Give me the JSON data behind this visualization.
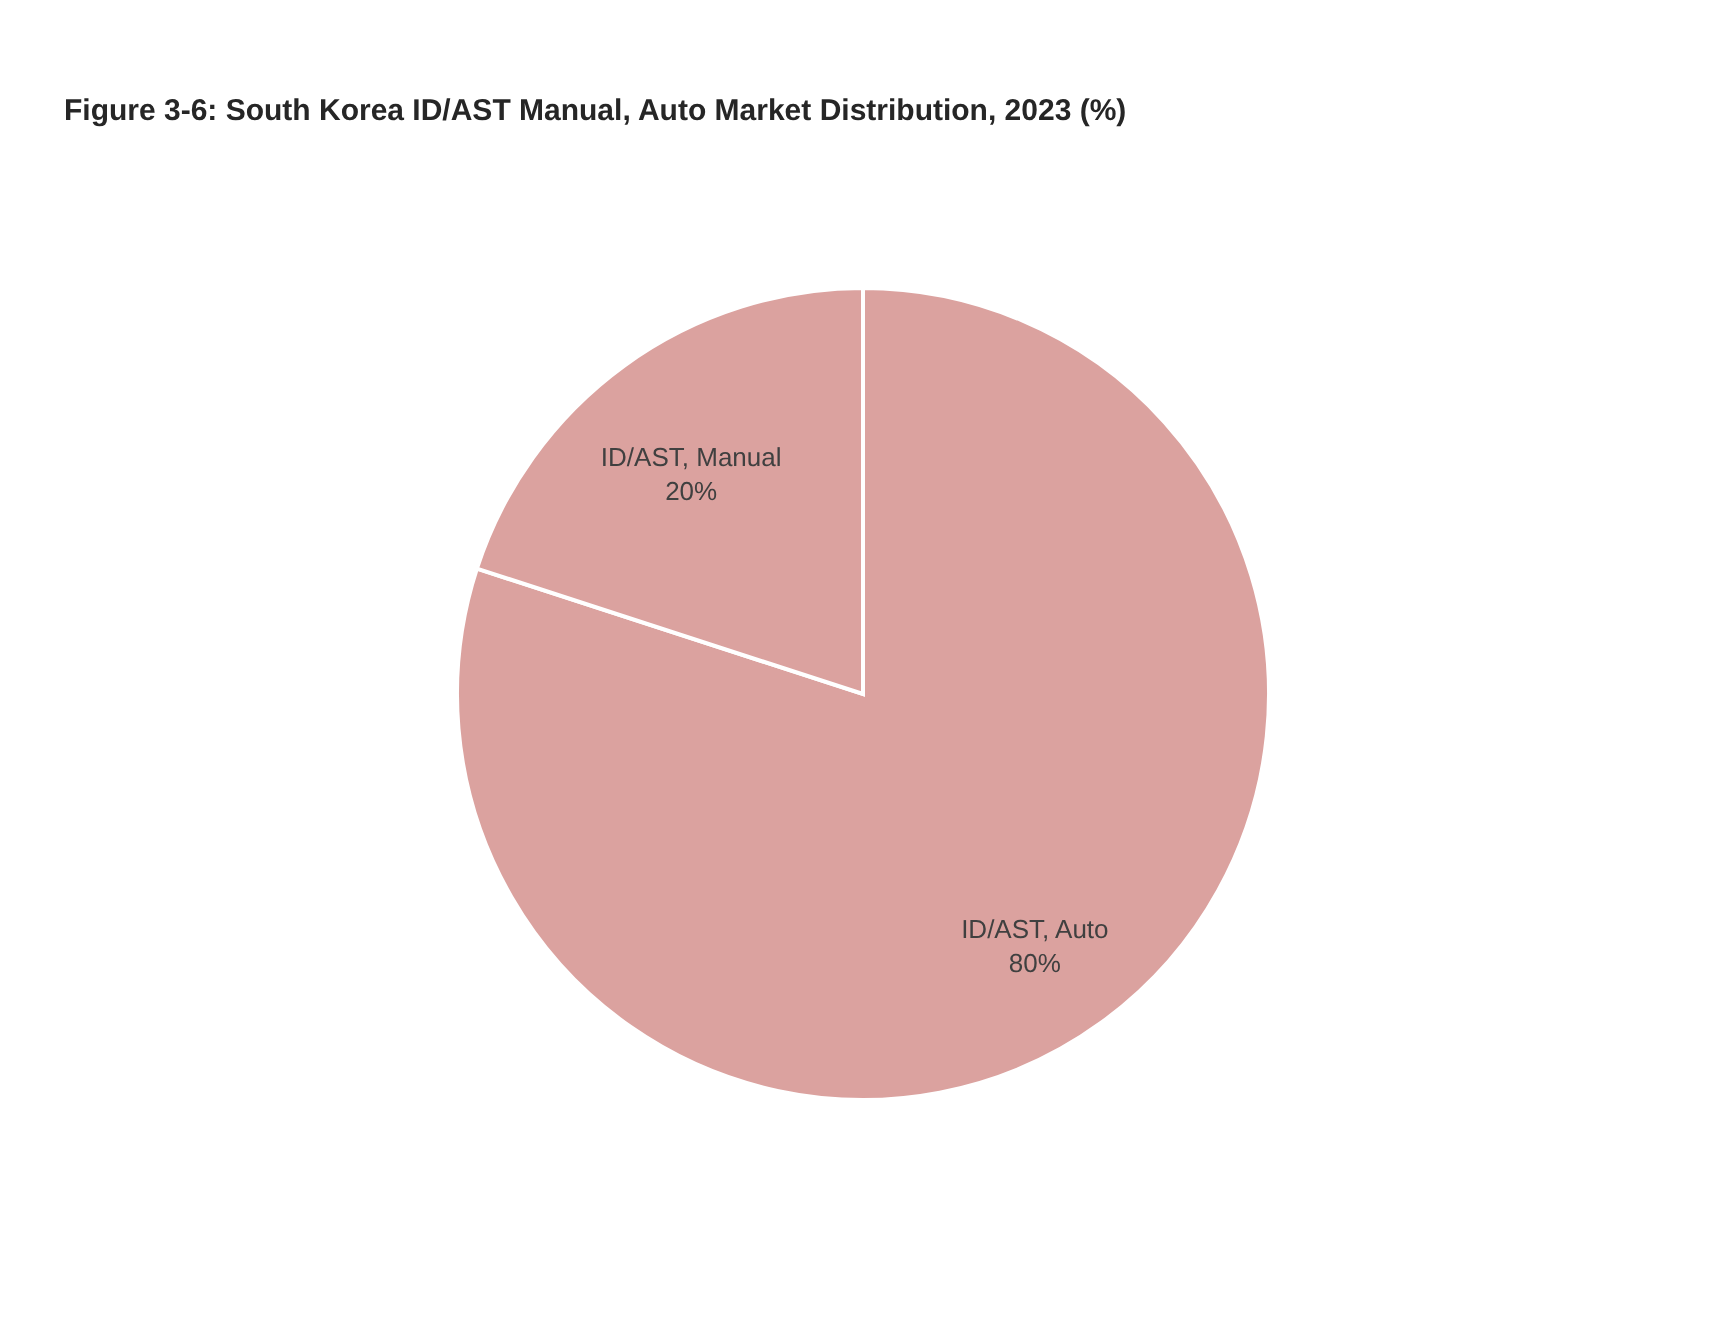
{
  "chart_data": {
    "type": "pie",
    "title": "Figure 3-6: South Korea ID/AST Manual, Auto Market Distribution, 2023 (%)",
    "categories": [
      "ID/AST, Auto",
      "ID/AST, Manual"
    ],
    "values": [
      80,
      20
    ],
    "colors": [
      "#dba29f",
      "#dba29f"
    ],
    "value_labels": [
      "80%",
      "20%"
    ]
  }
}
